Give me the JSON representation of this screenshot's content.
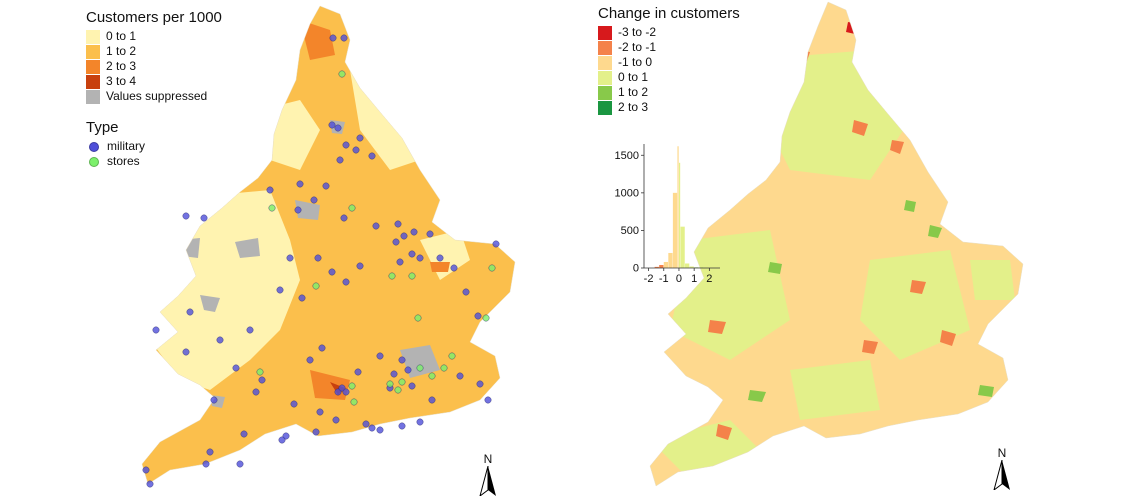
{
  "left_map": {
    "legend1": {
      "title": "Customers per 1000",
      "items": [
        {
          "label": "0 to 1",
          "color": "#fff3b0"
        },
        {
          "label": "1 to 2",
          "color": "#fbbf4c"
        },
        {
          "label": "2 to 3",
          "color": "#f3852a"
        },
        {
          "label": "3 to 4",
          "color": "#c8400e"
        },
        {
          "label": "Values suppressed",
          "color": "#b3b3b3"
        }
      ]
    },
    "legend2": {
      "title": "Type",
      "items": [
        {
          "label": "military",
          "color": "#4f4fd9"
        },
        {
          "label": "stores",
          "color": "#7cf06b"
        }
      ]
    },
    "north_label": "N"
  },
  "right_map": {
    "legend": {
      "title": "Change in customers",
      "items": [
        {
          "label": "-3 to -2",
          "color": "#d7191c"
        },
        {
          "label": "-2 to -1",
          "color": "#f4824a"
        },
        {
          "label": "-1 to 0",
          "color": "#fed98e"
        },
        {
          "label": "0 to 1",
          "color": "#e3f08a"
        },
        {
          "label": "1 to 2",
          "color": "#88c94a"
        },
        {
          "label": "2 to 3",
          "color": "#1a9641"
        }
      ]
    },
    "north_label": "N"
  },
  "chart_data": {
    "type": "bar",
    "title": "",
    "xlabel": "",
    "ylabel": "",
    "x_ticks": [
      "-2",
      "-1",
      "0",
      "1",
      "2"
    ],
    "y_ticks": [
      "0",
      "500",
      "1000",
      "1500"
    ],
    "xlim": [
      -2.3,
      2.7
    ],
    "ylim": [
      0,
      1650
    ],
    "bins": [
      {
        "x0": -1.6,
        "x1": -1.3,
        "count": 15,
        "color": "#f4824a"
      },
      {
        "x0": -1.3,
        "x1": -1.0,
        "count": 40,
        "color": "#f4824a"
      },
      {
        "x0": -1.0,
        "x1": -0.7,
        "count": 80,
        "color": "#fed98e"
      },
      {
        "x0": -0.7,
        "x1": -0.4,
        "count": 200,
        "color": "#fed98e"
      },
      {
        "x0": -0.4,
        "x1": -0.1,
        "count": 1000,
        "color": "#fed98e"
      },
      {
        "x0": -0.1,
        "x1": 0.0,
        "count": 1620,
        "color": "#fed98e"
      },
      {
        "x0": 0.0,
        "x1": 0.1,
        "count": 1400,
        "color": "#e3f08a"
      },
      {
        "x0": 0.1,
        "x1": 0.4,
        "count": 550,
        "color": "#e3f08a"
      },
      {
        "x0": 0.4,
        "x1": 0.7,
        "count": 60,
        "color": "#e3f08a"
      },
      {
        "x0": 0.7,
        "x1": 1.0,
        "count": 20,
        "color": "#e3f08a"
      },
      {
        "x0": 1.0,
        "x1": 1.3,
        "count": 8,
        "color": "#88c94a"
      },
      {
        "x0": 1.3,
        "x1": 1.6,
        "count": 5,
        "color": "#88c94a"
      }
    ]
  }
}
